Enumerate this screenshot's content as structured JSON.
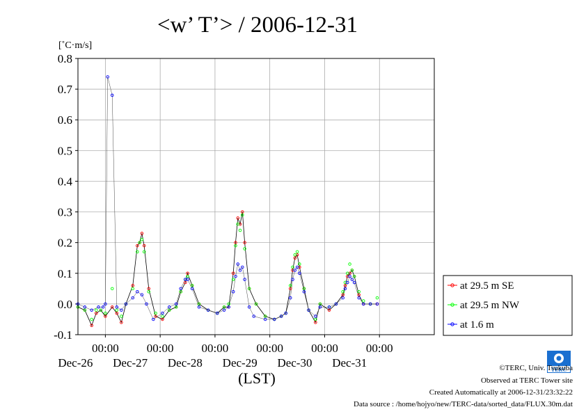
{
  "chart_data": {
    "type": "scatter",
    "title": "<w’ T’> / 2006-12-31",
    "unit_label": "[˚C·m/s]",
    "xlabel": "(LST)",
    "ylim": [
      -0.1,
      0.8
    ],
    "yticks": [
      "0.8",
      "0.7",
      "0.6",
      "0.5",
      "0.4",
      "0.3",
      "0.2",
      "0.1",
      "0.0",
      "-0.1"
    ],
    "xlim": [
      "2006-12-25 12:00",
      "2007-01-01 00:00"
    ],
    "xticks": [
      {
        "time": "00:00",
        "date": "Dec-26"
      },
      {
        "time": "00:00",
        "date": "Dec-27"
      },
      {
        "time": "00:00",
        "date": "Dec-28"
      },
      {
        "time": "00:00",
        "date": "Dec-29"
      },
      {
        "time": "00:00",
        "date": "Dec-30"
      },
      {
        "time": "00:00",
        "date": "Dec-31"
      }
    ],
    "grid": true,
    "legend_position": "bottom-right-outside",
    "series": [
      {
        "name": "at 29.5 m SE",
        "color": "#ff0000",
        "points": [
          [
            "12-25 12:00",
            -0.01
          ],
          [
            "12-25 15:00",
            -0.02
          ],
          [
            "12-25 18:00",
            -0.07
          ],
          [
            "12-25 20:00",
            -0.03
          ],
          [
            "12-25 22:00",
            -0.02
          ],
          [
            "12-26 00:00",
            -0.04
          ],
          [
            "12-26 03:00",
            -0.01
          ],
          [
            "12-26 05:00",
            -0.03
          ],
          [
            "12-26 07:00",
            -0.06
          ],
          [
            "12-26 09:00",
            0.0
          ],
          [
            "12-26 12:00",
            0.06
          ],
          [
            "12-26 14:00",
            0.19
          ],
          [
            "12-26 15:00",
            0.2
          ],
          [
            "12-26 16:00",
            0.23
          ],
          [
            "12-26 17:00",
            0.19
          ],
          [
            "12-26 19:00",
            0.05
          ],
          [
            "12-26 22:00",
            -0.04
          ],
          [
            "12-27 01:00",
            -0.05
          ],
          [
            "12-27 04:00",
            -0.02
          ],
          [
            "12-27 07:00",
            -0.01
          ],
          [
            "12-27 09:00",
            0.04
          ],
          [
            "12-27 11:00",
            0.07
          ],
          [
            "12-27 12:00",
            0.1
          ],
          [
            "12-27 14:00",
            0.06
          ],
          [
            "12-27 17:00",
            0.0
          ],
          [
            "12-27 21:00",
            -0.02
          ],
          [
            "12-28 01:00",
            -0.03
          ],
          [
            "12-28 04:00",
            -0.01
          ],
          [
            "12-28 06:00",
            -0.01
          ],
          [
            "12-28 08:00",
            0.1
          ],
          [
            "12-28 09:00",
            0.2
          ],
          [
            "12-28 10:00",
            0.28
          ],
          [
            "12-28 11:00",
            0.26
          ],
          [
            "12-28 12:00",
            0.3
          ],
          [
            "12-28 13:00",
            0.2
          ],
          [
            "12-28 15:00",
            0.05
          ],
          [
            "12-28 18:00",
            0.0
          ],
          [
            "12-28 22:00",
            -0.04
          ],
          [
            "12-29 02:00",
            -0.05
          ],
          [
            "12-29 05:00",
            -0.04
          ],
          [
            "12-29 07:00",
            -0.03
          ],
          [
            "12-29 09:00",
            0.05
          ],
          [
            "12-29 10:00",
            0.11
          ],
          [
            "12-29 11:00",
            0.15
          ],
          [
            "12-29 12:00",
            0.16
          ],
          [
            "12-29 13:00",
            0.12
          ],
          [
            "12-29 15:00",
            0.05
          ],
          [
            "12-29 17:00",
            -0.02
          ],
          [
            "12-29 20:00",
            -0.06
          ],
          [
            "12-29 22:00",
            0.0
          ],
          [
            "12-30 02:00",
            -0.02
          ],
          [
            "12-30 05:00",
            0.0
          ],
          [
            "12-30 08:00",
            0.03
          ],
          [
            "12-30 09:00",
            0.06
          ],
          [
            "12-30 10:00",
            0.09
          ],
          [
            "12-30 11:00",
            0.1
          ],
          [
            "12-30 12:00",
            0.11
          ],
          [
            "12-30 13:00",
            0.09
          ],
          [
            "12-30 15:00",
            0.03
          ],
          [
            "12-30 17:00",
            0.0
          ],
          [
            "12-30 20:00",
            0.0
          ],
          [
            "12-30 23:00",
            0.0
          ]
        ]
      },
      {
        "name": "at 29.5 m NW",
        "color": "#00ff00",
        "points": [
          [
            "12-25 12:00",
            -0.01
          ],
          [
            "12-25 15:00",
            -0.02
          ],
          [
            "12-25 18:00",
            -0.05
          ],
          [
            "12-25 20:00",
            -0.02
          ],
          [
            "12-25 22:00",
            -0.02
          ],
          [
            "12-26 00:00",
            -0.03
          ],
          [
            "12-26 03:00",
            0.05
          ],
          [
            "12-26 05:00",
            -0.02
          ],
          [
            "12-26 07:00",
            -0.04
          ],
          [
            "12-26 09:00",
            0.0
          ],
          [
            "12-26 12:00",
            0.05
          ],
          [
            "12-26 14:00",
            0.17
          ],
          [
            "12-26 15:00",
            0.2
          ],
          [
            "12-26 16:00",
            0.21
          ],
          [
            "12-26 17:00",
            0.17
          ],
          [
            "12-26 19:00",
            0.04
          ],
          [
            "12-26 22:00",
            -0.03
          ],
          [
            "12-27 01:00",
            -0.04
          ],
          [
            "12-27 04:00",
            -0.02
          ],
          [
            "12-27 07:00",
            -0.01
          ],
          [
            "12-27 09:00",
            0.04
          ],
          [
            "12-27 11:00",
            0.08
          ],
          [
            "12-27 12:00",
            0.09
          ],
          [
            "12-27 14:00",
            0.06
          ],
          [
            "12-27 17:00",
            0.0
          ],
          [
            "12-27 21:00",
            -0.02
          ],
          [
            "12-28 01:00",
            -0.03
          ],
          [
            "12-28 04:00",
            -0.01
          ],
          [
            "12-28 06:00",
            0.0
          ],
          [
            "12-28 08:00",
            0.08
          ],
          [
            "12-28 09:00",
            0.19
          ],
          [
            "12-28 10:00",
            0.26
          ],
          [
            "12-28 11:00",
            0.24
          ],
          [
            "12-28 12:00",
            0.29
          ],
          [
            "12-28 13:00",
            0.18
          ],
          [
            "12-28 15:00",
            0.05
          ],
          [
            "12-28 18:00",
            0.0
          ],
          [
            "12-28 22:00",
            -0.04
          ],
          [
            "12-29 02:00",
            -0.05
          ],
          [
            "12-29 05:00",
            -0.04
          ],
          [
            "12-29 07:00",
            -0.03
          ],
          [
            "12-29 09:00",
            0.06
          ],
          [
            "12-29 10:00",
            0.12
          ],
          [
            "12-29 11:00",
            0.16
          ],
          [
            "12-29 12:00",
            0.17
          ],
          [
            "12-29 13:00",
            0.13
          ],
          [
            "12-29 15:00",
            0.05
          ],
          [
            "12-29 17:00",
            -0.02
          ],
          [
            "12-29 20:00",
            -0.05
          ],
          [
            "12-29 22:00",
            0.0
          ],
          [
            "12-30 02:00",
            -0.01
          ],
          [
            "12-30 05:00",
            0.0
          ],
          [
            "12-30 08:00",
            0.04
          ],
          [
            "12-30 09:00",
            0.07
          ],
          [
            "12-30 10:00",
            0.1
          ],
          [
            "12-30 11:00",
            0.13
          ],
          [
            "12-30 12:00",
            0.11
          ],
          [
            "12-30 13:00",
            0.09
          ],
          [
            "12-30 15:00",
            0.04
          ],
          [
            "12-30 17:00",
            0.01
          ],
          [
            "12-30 20:00",
            0.0
          ],
          [
            "12-30 23:00",
            0.02
          ]
        ]
      },
      {
        "name": "at 1.6 m",
        "color": "#0000ff",
        "points": [
          [
            "12-25 12:00",
            0.0
          ],
          [
            "12-25 15:00",
            -0.01
          ],
          [
            "12-25 18:00",
            -0.02
          ],
          [
            "12-25 21:00",
            -0.01
          ],
          [
            "12-25 23:00",
            -0.01
          ],
          [
            "12-26 00:00",
            0.0
          ],
          [
            "12-26 01:00",
            0.74
          ],
          [
            "12-26 03:00",
            0.68
          ],
          [
            "12-26 05:00",
            -0.01
          ],
          [
            "12-26 07:00",
            -0.02
          ],
          [
            "12-26 09:00",
            0.0
          ],
          [
            "12-26 12:00",
            0.02
          ],
          [
            "12-26 14:00",
            0.04
          ],
          [
            "12-26 16:00",
            0.03
          ],
          [
            "12-26 18:00",
            0.0
          ],
          [
            "12-26 21:00",
            -0.05
          ],
          [
            "12-27 01:00",
            -0.03
          ],
          [
            "12-27 04:00",
            -0.01
          ],
          [
            "12-27 07:00",
            0.0
          ],
          [
            "12-27 09:00",
            0.05
          ],
          [
            "12-27 11:00",
            0.08
          ],
          [
            "12-27 12:00",
            0.08
          ],
          [
            "12-27 14:00",
            0.05
          ],
          [
            "12-27 17:00",
            -0.01
          ],
          [
            "12-27 21:00",
            -0.02
          ],
          [
            "12-28 01:00",
            -0.03
          ],
          [
            "12-28 04:00",
            -0.02
          ],
          [
            "12-28 06:00",
            -0.01
          ],
          [
            "12-28 08:00",
            0.04
          ],
          [
            "12-28 09:00",
            0.09
          ],
          [
            "12-28 10:00",
            0.13
          ],
          [
            "12-28 11:00",
            0.11
          ],
          [
            "12-28 12:00",
            0.12
          ],
          [
            "12-28 13:00",
            0.08
          ],
          [
            "12-28 15:00",
            -0.01
          ],
          [
            "12-28 17:00",
            -0.04
          ],
          [
            "12-28 22:00",
            -0.05
          ],
          [
            "12-29 02:00",
            -0.05
          ],
          [
            "12-29 05:00",
            -0.04
          ],
          [
            "12-29 07:00",
            -0.03
          ],
          [
            "12-29 09:00",
            0.02
          ],
          [
            "12-29 10:00",
            0.08
          ],
          [
            "12-29 11:00",
            0.11
          ],
          [
            "12-29 12:00",
            0.12
          ],
          [
            "12-29 13:00",
            0.1
          ],
          [
            "12-29 15:00",
            0.04
          ],
          [
            "12-29 17:00",
            -0.02
          ],
          [
            "12-29 20:00",
            -0.04
          ],
          [
            "12-29 22:00",
            -0.01
          ],
          [
            "12-30 02:00",
            -0.01
          ],
          [
            "12-30 05:00",
            0.0
          ],
          [
            "12-30 08:00",
            0.02
          ],
          [
            "12-30 09:00",
            0.05
          ],
          [
            "12-30 10:00",
            0.07
          ],
          [
            "12-30 11:00",
            0.09
          ],
          [
            "12-30 12:00",
            0.08
          ],
          [
            "12-30 13:00",
            0.07
          ],
          [
            "12-30 15:00",
            0.02
          ],
          [
            "12-30 17:00",
            0.0
          ],
          [
            "12-30 20:00",
            0.0
          ],
          [
            "12-30 23:00",
            0.0
          ]
        ]
      }
    ]
  },
  "footer": {
    "credit": "©TERC, Univ. Tsukuba",
    "observed": "Observed at TERC Tower site",
    "created": "Created Automatically at 2006-12-31/23:32:22",
    "source": "Data source : /home/hojyo/new/TERC-data/sorted_data/FLUX.30m.dat",
    "logo_text": "TERC"
  }
}
